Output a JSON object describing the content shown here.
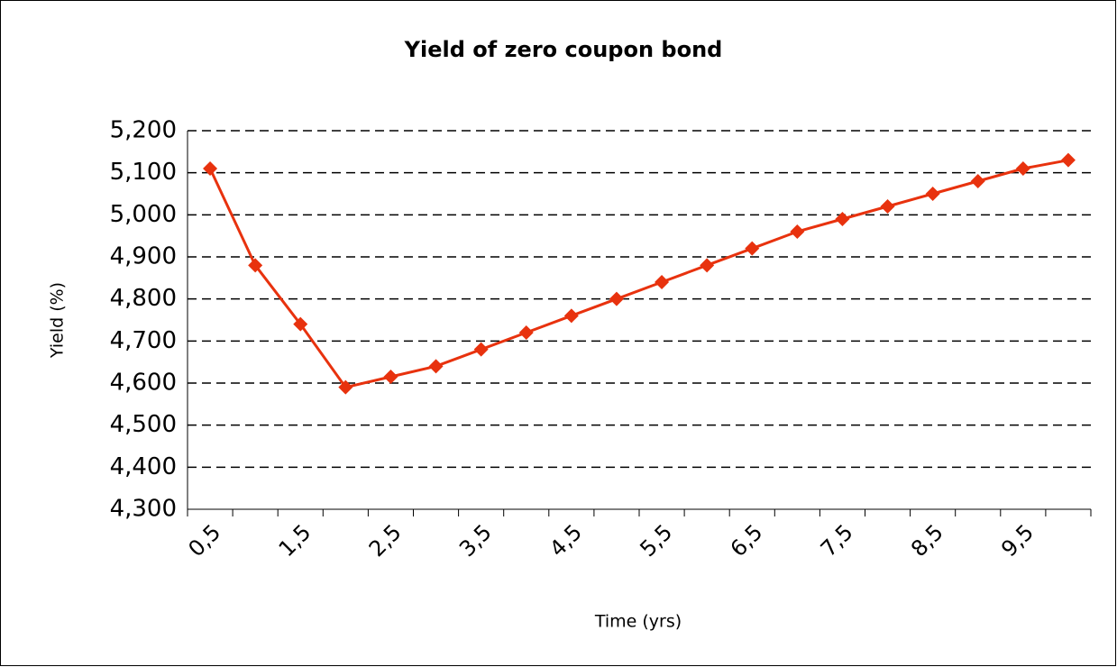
{
  "chart_data": {
    "type": "line",
    "title": "Yield of zero coupon bond",
    "x_label": "Time (yrs)",
    "y_label": "Yield (%)",
    "categories": [
      "0,5",
      null,
      "1,5",
      null,
      "2,5",
      null,
      "3,5",
      null,
      "4,5",
      null,
      "5,5",
      null,
      "6,5",
      null,
      "7,5",
      null,
      "8,5",
      null,
      "9,5",
      null
    ],
    "series": [
      {
        "name": "Yield",
        "color": "#e8320e",
        "values": [
          5.11,
          4.88,
          4.74,
          4.59,
          4.615,
          4.64,
          4.68,
          4.72,
          4.76,
          4.8,
          4.84,
          4.88,
          4.92,
          4.96,
          4.99,
          5.02,
          5.05,
          5.08,
          5.11,
          5.13
        ]
      }
    ],
    "ylim": [
      4.3,
      5.2
    ],
    "yticks": [
      {
        "value": 4.3,
        "label": "4,300"
      },
      {
        "value": 4.4,
        "label": "4,400"
      },
      {
        "value": 4.5,
        "label": "4,500"
      },
      {
        "value": 4.6,
        "label": "4,600"
      },
      {
        "value": 4.7,
        "label": "4,700"
      },
      {
        "value": 4.8,
        "label": "4,800"
      },
      {
        "value": 4.9,
        "label": "4,900"
      },
      {
        "value": 5.0,
        "label": "5,000"
      },
      {
        "value": 5.1,
        "label": "5,100"
      },
      {
        "value": 5.2,
        "label": "5,200"
      }
    ],
    "grid": true
  }
}
